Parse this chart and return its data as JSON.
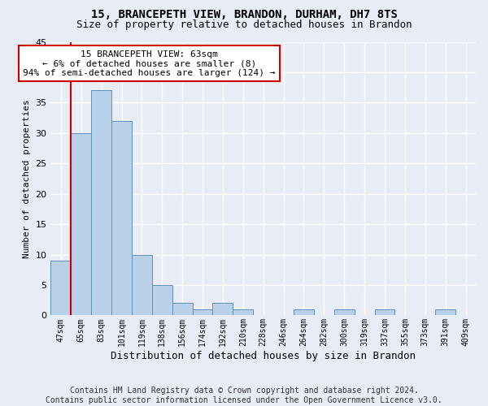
{
  "title1": "15, BRANCEPETH VIEW, BRANDON, DURHAM, DH7 8TS",
  "title2": "Size of property relative to detached houses in Brandon",
  "xlabel": "Distribution of detached houses by size in Brandon",
  "ylabel": "Number of detached properties",
  "categories": [
    "47sqm",
    "65sqm",
    "83sqm",
    "101sqm",
    "119sqm",
    "138sqm",
    "156sqm",
    "174sqm",
    "192sqm",
    "210sqm",
    "228sqm",
    "246sqm",
    "264sqm",
    "282sqm",
    "300sqm",
    "319sqm",
    "337sqm",
    "355sqm",
    "373sqm",
    "391sqm",
    "409sqm"
  ],
  "values": [
    9,
    30,
    37,
    32,
    10,
    5,
    2,
    1,
    2,
    1,
    0,
    0,
    1,
    0,
    1,
    0,
    1,
    0,
    0,
    1,
    0
  ],
  "bar_color": "#b8d0e8",
  "bar_edge_color": "#6090c0",
  "annotation_text": "15 BRANCEPETH VIEW: 63sqm\n← 6% of detached houses are smaller (8)\n94% of semi-detached houses are larger (124) →",
  "annotation_box_facecolor": "#ffffff",
  "annotation_box_edgecolor": "#cc0000",
  "red_line_color": "#cc0000",
  "ylim_min": 0,
  "ylim_max": 45,
  "yticks": [
    0,
    5,
    10,
    15,
    20,
    25,
    30,
    35,
    40,
    45
  ],
  "footer1": "Contains HM Land Registry data © Crown copyright and database right 2024.",
  "footer2": "Contains public sector information licensed under the Open Government Licence v3.0.",
  "bg_color": "#e8edf5",
  "grid_color": "#ffffff",
  "title1_fontsize": 10,
  "title2_fontsize": 9,
  "ylabel_fontsize": 8,
  "xlabel_fontsize": 9,
  "ytick_fontsize": 8,
  "xtick_fontsize": 7,
  "annot_fontsize": 8,
  "footer_fontsize": 7
}
